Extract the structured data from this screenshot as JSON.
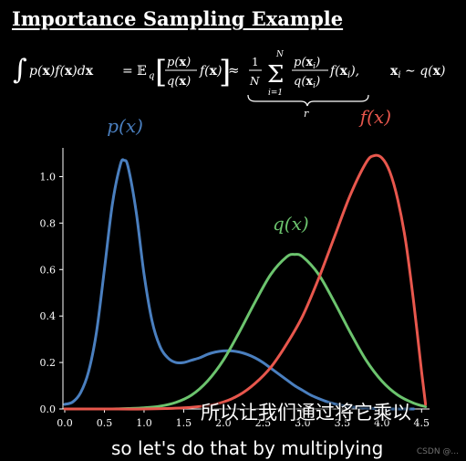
{
  "title": "Importance Sampling Example",
  "formula": {
    "lhs": "∫ p(x)f(x)dx = 𝔼q [ p(x)⁄q(x) f(x) ] ≈ (1/N) Σ_{i=1}^{N} p(xᵢ)⁄q(xᵢ) f(xᵢ),   xᵢ ∼ q(x)",
    "underbrace_label": "r"
  },
  "chart_data": {
    "type": "line",
    "title": "",
    "xlabel": "",
    "ylabel": "",
    "xlim": [
      0.0,
      4.6
    ],
    "ylim": [
      0.0,
      1.1
    ],
    "xticks": [
      "0.0",
      "0.5",
      "1.0",
      "1.5",
      "2.0",
      "2.5",
      "3.0",
      "3.5",
      "4.0",
      "4.5"
    ],
    "yticks": [
      "0.0",
      "0.2",
      "0.4",
      "0.6",
      "0.8",
      "1.0"
    ],
    "grid": false,
    "series": [
      {
        "name": "p(x)",
        "color": "#4a7fbf",
        "x": [
          0.0,
          0.1,
          0.2,
          0.3,
          0.4,
          0.5,
          0.6,
          0.7,
          0.75,
          0.8,
          0.9,
          1.0,
          1.1,
          1.2,
          1.3,
          1.4,
          1.5,
          1.6,
          1.7,
          1.8,
          1.9,
          2.0,
          2.1,
          2.2,
          2.3,
          2.4,
          2.5,
          2.6,
          2.7,
          2.8,
          2.9,
          3.0,
          3.1,
          3.2,
          3.3,
          3.4,
          3.5,
          3.6,
          3.7,
          3.8,
          3.9,
          4.0,
          4.1,
          4.2,
          4.3,
          4.4
        ],
        "y": [
          0.02,
          0.03,
          0.07,
          0.16,
          0.33,
          0.6,
          0.88,
          1.05,
          1.07,
          1.04,
          0.85,
          0.58,
          0.38,
          0.27,
          0.22,
          0.2,
          0.2,
          0.21,
          0.22,
          0.235,
          0.245,
          0.25,
          0.25,
          0.245,
          0.235,
          0.22,
          0.2,
          0.175,
          0.15,
          0.125,
          0.1,
          0.08,
          0.06,
          0.045,
          0.032,
          0.022,
          0.015,
          0.01,
          0.006,
          0.004,
          0.002,
          0.001,
          0.0,
          0.0,
          0.0,
          0.0
        ]
      },
      {
        "name": "q(x)",
        "color": "#6cc46e",
        "x": [
          0.0,
          0.2,
          0.4,
          0.6,
          0.8,
          1.0,
          1.2,
          1.4,
          1.6,
          1.8,
          2.0,
          2.2,
          2.4,
          2.6,
          2.8,
          2.9,
          3.0,
          3.2,
          3.4,
          3.6,
          3.8,
          4.0,
          4.2,
          4.4,
          4.55
        ],
        "y": [
          0.0,
          0.0,
          0.0,
          0.0,
          0.002,
          0.005,
          0.012,
          0.028,
          0.06,
          0.12,
          0.21,
          0.33,
          0.46,
          0.58,
          0.655,
          0.665,
          0.655,
          0.58,
          0.46,
          0.33,
          0.21,
          0.12,
          0.06,
          0.025,
          0.01
        ]
      },
      {
        "name": "f(x)",
        "color": "#e8574d",
        "x": [
          0.0,
          0.5,
          1.0,
          1.5,
          1.8,
          2.0,
          2.2,
          2.4,
          2.6,
          2.8,
          3.0,
          3.2,
          3.4,
          3.6,
          3.8,
          3.9,
          4.0,
          4.1,
          4.2,
          4.3,
          4.4,
          4.5,
          4.55
        ],
        "y": [
          0.0,
          0.0,
          0.0,
          0.005,
          0.015,
          0.03,
          0.06,
          0.11,
          0.18,
          0.28,
          0.4,
          0.56,
          0.74,
          0.92,
          1.06,
          1.09,
          1.08,
          1.02,
          0.9,
          0.72,
          0.46,
          0.16,
          0.02
        ]
      }
    ]
  },
  "subtitle_zh": "所以让我们通过将它乘以",
  "subtitle_en": "so let's do that by multiplying",
  "watermark": "CSDN @..."
}
